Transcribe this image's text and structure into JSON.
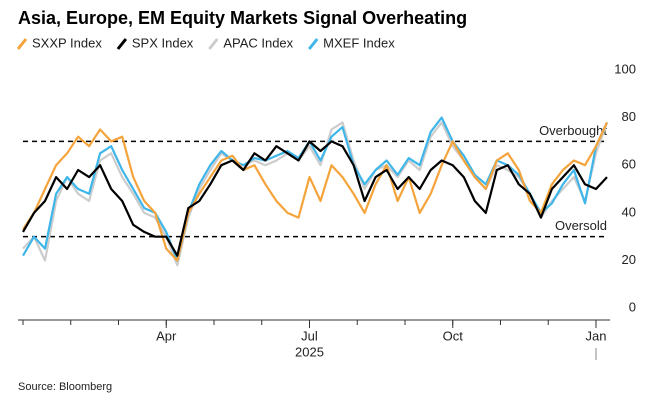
{
  "chart_data": {
    "type": "line",
    "title": "Asia, Europe, EM Equity Markets Signal Overheating",
    "source": "Source: Bloomberg",
    "year_label": "2025",
    "categories": [
      null,
      null,
      null,
      null,
      null,
      null,
      null,
      null,
      null,
      null,
      null,
      null,
      null,
      "Apr",
      null,
      null,
      null,
      null,
      null,
      null,
      null,
      null,
      null,
      null,
      null,
      null,
      "Jul",
      null,
      null,
      null,
      null,
      null,
      null,
      null,
      null,
      null,
      null,
      null,
      null,
      "Oct",
      null,
      null,
      null,
      null,
      null,
      null,
      null,
      null,
      null,
      null,
      null,
      null,
      "Jan",
      null
    ],
    "ylim": [
      -5,
      100
    ],
    "yticks": [
      0,
      20,
      40,
      60,
      80,
      100
    ],
    "grid": false,
    "reference_lines": [
      {
        "value": 70,
        "label": "Overbought"
      },
      {
        "value": 30,
        "label": "Oversold"
      }
    ],
    "series": [
      {
        "name": "SXXP Index",
        "color": "#f5a33b",
        "values": [
          33,
          40,
          50,
          60,
          65,
          72,
          68,
          75,
          70,
          72,
          55,
          45,
          40,
          25,
          20,
          40,
          48,
          55,
          62,
          64,
          58,
          60,
          52,
          45,
          40,
          38,
          55,
          45,
          60,
          55,
          48,
          40,
          52,
          60,
          45,
          55,
          40,
          48,
          60,
          70,
          62,
          55,
          50,
          62,
          65,
          58,
          45,
          40,
          52,
          58,
          62,
          60,
          68,
          78
        ]
      },
      {
        "name": "SPX Index",
        "color": "#000000",
        "values": [
          32,
          40,
          45,
          55,
          50,
          58,
          55,
          60,
          50,
          45,
          35,
          32,
          30,
          30,
          22,
          42,
          45,
          52,
          60,
          62,
          58,
          65,
          62,
          68,
          65,
          62,
          70,
          66,
          70,
          68,
          60,
          45,
          55,
          58,
          50,
          55,
          50,
          58,
          62,
          60,
          55,
          45,
          40,
          58,
          60,
          52,
          48,
          38,
          50,
          55,
          60,
          52,
          50,
          55
        ]
      },
      {
        "name": "APAC Index",
        "color": "#cccccc",
        "values": [
          25,
          30,
          20,
          45,
          55,
          48,
          45,
          62,
          65,
          55,
          48,
          40,
          38,
          30,
          18,
          38,
          50,
          58,
          65,
          62,
          60,
          62,
          60,
          62,
          65,
          62,
          68,
          60,
          75,
          78,
          62,
          50,
          58,
          60,
          55,
          62,
          58,
          72,
          78,
          68,
          62,
          55,
          50,
          60,
          58,
          55,
          48,
          38,
          45,
          50,
          55,
          45,
          65,
          78
        ]
      },
      {
        "name": "MXEF Index",
        "color": "#3fb6ea",
        "values": [
          22,
          30,
          25,
          48,
          55,
          50,
          48,
          65,
          68,
          58,
          50,
          42,
          40,
          32,
          20,
          40,
          52,
          60,
          66,
          62,
          60,
          63,
          62,
          64,
          66,
          63,
          70,
          62,
          72,
          76,
          60,
          52,
          58,
          62,
          56,
          63,
          60,
          74,
          80,
          70,
          64,
          56,
          52,
          62,
          60,
          56,
          48,
          40,
          44,
          52,
          58,
          44,
          68,
          78
        ]
      }
    ]
  }
}
